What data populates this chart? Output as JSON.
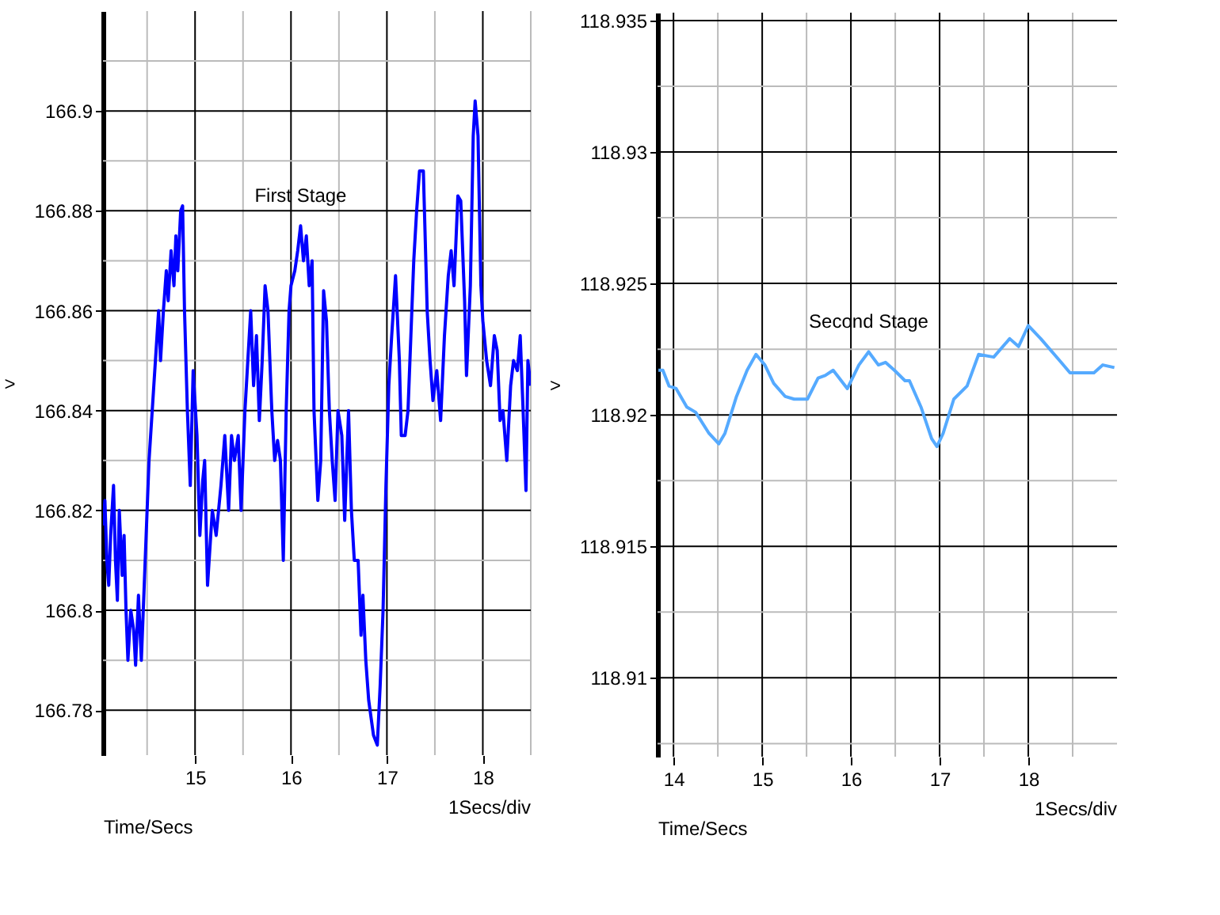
{
  "chart_data": [
    {
      "type": "line",
      "xlabel": "Time/Secs",
      "ylabel": ">",
      "annotations": [
        {
          "text": "First Stage",
          "x": 16.1,
          "y": 166.877
        },
        "1Secs/div"
      ],
      "grid": true,
      "xlim": [
        14.04,
        18.5
      ],
      "ylim": [
        166.771,
        166.92
      ],
      "xticks": [
        {
          "value": 14.5,
          "label": null
        },
        15,
        {
          "value": 15.5,
          "label": null
        },
        16,
        {
          "value": 16.5,
          "label": null
        },
        17,
        {
          "value": 17.5,
          "label": null
        },
        18,
        {
          "value": 18.5,
          "label": null
        }
      ],
      "yticks": [
        166.78,
        {
          "value": 166.79,
          "label": null
        },
        166.8,
        {
          "value": 166.81,
          "label": null
        },
        166.82,
        {
          "value": 166.83,
          "label": null
        },
        166.84,
        {
          "value": 166.85,
          "label": null
        },
        166.86,
        {
          "value": 166.87,
          "label": null
        },
        166.88,
        {
          "value": 166.89,
          "label": null
        },
        166.9,
        {
          "value": 166.91,
          "label": null
        }
      ],
      "x": [
        14.04,
        14.06,
        14.08,
        14.1,
        14.12,
        14.15,
        14.17,
        14.19,
        14.21,
        14.24,
        14.26,
        14.28,
        14.3,
        14.33,
        14.36,
        14.38,
        14.41,
        14.44,
        14.46,
        14.49,
        14.52,
        14.57,
        14.62,
        14.64,
        14.67,
        14.7,
        14.72,
        14.75,
        14.78,
        14.8,
        14.82,
        14.85,
        14.87,
        14.89,
        14.92,
        14.95,
        14.98,
        15.02,
        15.05,
        15.08,
        15.1,
        15.13,
        15.18,
        15.22,
        15.27,
        15.31,
        15.35,
        15.38,
        15.41,
        15.45,
        15.48,
        15.52,
        15.55,
        15.58,
        15.61,
        15.64,
        15.67,
        15.7,
        15.73,
        15.76,
        15.8,
        15.83,
        15.86,
        15.89,
        15.92,
        15.95,
        15.98,
        16.0,
        16.04,
        16.07,
        16.1,
        16.13,
        16.16,
        16.19,
        16.22,
        16.24,
        16.28,
        16.31,
        16.34,
        16.37,
        16.4,
        16.43,
        16.46,
        16.49,
        16.53,
        16.56,
        16.6,
        16.63,
        16.66,
        16.7,
        16.73,
        16.75,
        16.78,
        16.81,
        16.86,
        16.9,
        16.93,
        16.96,
        16.99,
        17.02,
        17.05,
        17.09,
        17.13,
        17.15,
        17.19,
        17.22,
        17.25,
        17.28,
        17.31,
        17.34,
        17.38,
        17.42,
        17.45,
        17.48,
        17.52,
        17.56,
        17.6,
        17.64,
        17.67,
        17.7,
        17.74,
        17.77,
        17.81,
        17.83,
        17.87,
        17.9,
        17.92,
        17.95,
        17.98,
        18.0,
        18.04,
        18.08,
        18.12,
        18.15,
        18.18,
        18.21,
        18.25,
        18.29,
        18.32,
        18.36,
        18.39,
        18.42,
        18.45,
        18.47,
        18.5
      ],
      "series": [
        {
          "color": "#0000ff",
          "values": [
            166.817,
            166.822,
            166.81,
            166.805,
            166.815,
            166.825,
            166.81,
            166.802,
            166.82,
            166.807,
            166.815,
            166.8,
            166.79,
            166.8,
            166.796,
            166.789,
            166.803,
            166.79,
            166.8,
            166.815,
            166.83,
            166.845,
            166.86,
            166.85,
            166.86,
            166.868,
            166.862,
            166.872,
            166.865,
            166.875,
            166.868,
            166.88,
            166.881,
            166.86,
            166.84,
            166.825,
            166.848,
            166.835,
            166.815,
            166.826,
            166.83,
            166.805,
            166.82,
            166.815,
            166.825,
            166.835,
            166.82,
            166.835,
            166.83,
            166.835,
            166.82,
            166.84,
            166.85,
            166.86,
            166.845,
            166.855,
            166.838,
            166.85,
            166.865,
            166.86,
            166.84,
            166.83,
            166.834,
            166.83,
            166.81,
            166.84,
            166.86,
            166.865,
            166.868,
            166.872,
            166.877,
            166.87,
            166.875,
            166.865,
            166.87,
            166.84,
            166.822,
            166.83,
            166.864,
            166.858,
            166.84,
            166.83,
            166.822,
            166.84,
            166.835,
            166.818,
            166.84,
            166.82,
            166.81,
            166.81,
            166.795,
            166.803,
            166.79,
            166.782,
            166.775,
            166.773,
            166.785,
            166.8,
            166.825,
            166.845,
            166.855,
            166.867,
            166.85,
            166.835,
            166.835,
            166.84,
            166.855,
            166.87,
            166.88,
            166.888,
            166.888,
            166.86,
            166.85,
            166.842,
            166.848,
            166.838,
            166.855,
            166.867,
            166.872,
            166.865,
            166.883,
            166.882,
            166.862,
            166.847,
            166.865,
            166.895,
            166.902,
            166.895,
            166.865,
            166.858,
            166.85,
            166.845,
            166.855,
            166.852,
            166.838,
            166.84,
            166.83,
            166.845,
            166.85,
            166.848,
            166.855,
            166.84,
            166.824,
            166.85,
            166.845
          ]
        }
      ]
    },
    {
      "type": "line",
      "xlabel": "Time/Secs",
      "ylabel": ">",
      "annotations": [
        {
          "text": "Second Stage",
          "x": 16.2,
          "y": 118.9224
        },
        "1Secs/div"
      ],
      "grid": true,
      "xlim": [
        13.82,
        19.0
      ],
      "ylim": [
        118.907,
        118.9353
      ],
      "xticks": [
        14,
        {
          "value": 14.5,
          "label": null
        },
        15,
        {
          "value": 15.5,
          "label": null
        },
        16,
        {
          "value": 16.5,
          "label": null
        },
        17,
        {
          "value": 17.5,
          "label": null
        },
        18,
        {
          "value": 18.5,
          "label": null
        }
      ],
      "yticks": [
        {
          "value": 118.9075,
          "label": null
        },
        118.91,
        {
          "value": 118.9125,
          "label": null
        },
        118.915,
        {
          "value": 118.9175,
          "label": null
        },
        118.92,
        {
          "value": 118.9225,
          "label": null
        },
        118.925,
        {
          "value": 118.9275,
          "label": null
        },
        118.93,
        {
          "value": 118.9325,
          "label": null
        },
        118.935
      ],
      "x": [
        13.83,
        13.88,
        13.95,
        14.03,
        14.15,
        14.25,
        14.4,
        14.51,
        14.58,
        14.71,
        14.83,
        14.93,
        15.03,
        15.13,
        15.26,
        15.36,
        15.51,
        15.63,
        15.71,
        15.8,
        15.96,
        16.09,
        16.2,
        16.31,
        16.39,
        16.49,
        16.61,
        16.66,
        16.79,
        16.91,
        16.97,
        17.04,
        17.16,
        17.31,
        17.44,
        17.61,
        17.79,
        17.89,
        18.0,
        18.14,
        18.37,
        18.47,
        18.62,
        18.74,
        18.84,
        18.97
      ],
      "series": [
        {
          "color": "#55aaff",
          "values": [
            118.9217,
            118.9217,
            118.9211,
            118.921,
            118.9203,
            118.9201,
            118.9193,
            118.9189,
            118.9193,
            118.9207,
            118.9217,
            118.9223,
            118.9219,
            118.9212,
            118.9207,
            118.9206,
            118.9206,
            118.9214,
            118.9215,
            118.9217,
            118.921,
            118.9219,
            118.9224,
            118.9219,
            118.922,
            118.9217,
            118.9213,
            118.9213,
            118.9203,
            118.9191,
            118.9188,
            118.9193,
            118.9206,
            118.9211,
            118.9223,
            118.9222,
            118.9229,
            118.9226,
            118.9234,
            118.9229,
            118.922,
            118.9216,
            118.9216,
            118.9216,
            118.9219,
            118.9218
          ]
        }
      ]
    }
  ]
}
